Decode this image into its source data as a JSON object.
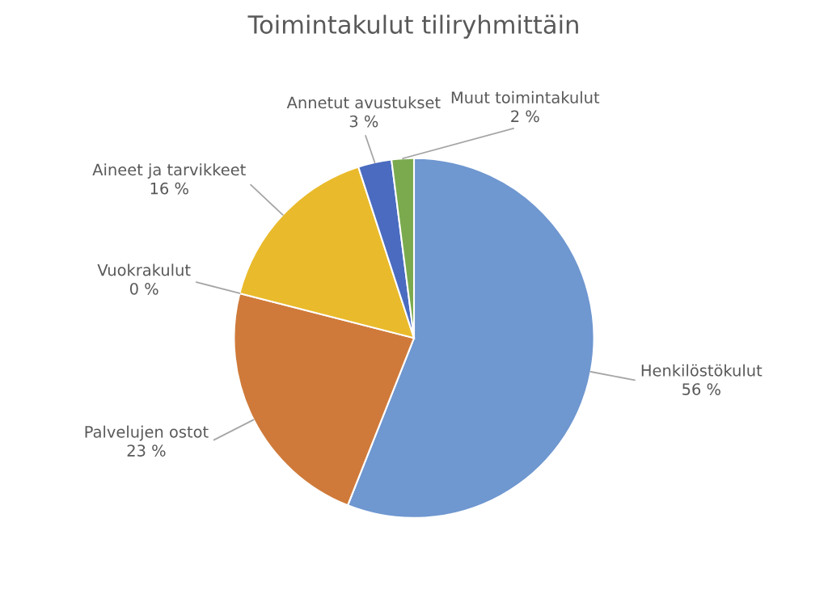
{
  "chart_data": {
    "type": "pie",
    "title": "Toimintakulut tiliryhmittäin",
    "categories": [
      "Henkilöstökulut",
      "Palvelujen ostot",
      "Vuokrakulut",
      "Aineet ja tarvikkeet",
      "Annetut avustukset",
      "Muut toimintakulut"
    ],
    "values": [
      56,
      23,
      0,
      16,
      3,
      2
    ],
    "colors": [
      "#6f97d0",
      "#cf7a3a",
      "#a5a5a5",
      "#e9ba2b",
      "#4a6bbf",
      "#7aaa4d"
    ],
    "value_labels": [
      "56 %",
      "23 %",
      "0 %",
      "16 %",
      "3 %",
      "2 %"
    ]
  }
}
